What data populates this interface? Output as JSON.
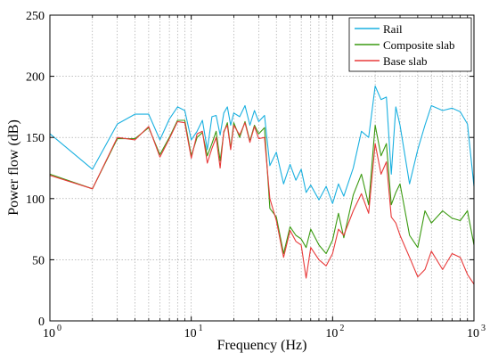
{
  "chart_data": {
    "type": "line",
    "title": "",
    "xlabel": "Frequency (Hz)",
    "ylabel": "Power flow (dB)",
    "xscale": "log",
    "xlim": [
      1,
      1000
    ],
    "ylim": [
      0,
      250
    ],
    "grid": true,
    "legend_position": "top-right",
    "x_ticks": [
      {
        "value": 1,
        "base": "10",
        "exp": "0"
      },
      {
        "value": 10,
        "base": "10",
        "exp": "1"
      },
      {
        "value": 100,
        "base": "10",
        "exp": "2"
      },
      {
        "value": 1000,
        "base": "10",
        "exp": "3"
      }
    ],
    "y_ticks": [
      0,
      50,
      100,
      150,
      200,
      250
    ],
    "x": [
      1,
      2,
      3,
      4,
      5,
      6,
      7,
      8,
      9,
      10,
      11,
      12,
      13,
      14,
      15,
      16,
      17,
      18,
      19,
      20,
      22,
      24,
      26,
      28,
      30,
      33,
      36,
      40,
      45,
      50,
      55,
      60,
      65,
      70,
      80,
      90,
      100,
      110,
      120,
      140,
      160,
      180,
      200,
      220,
      240,
      260,
      280,
      300,
      350,
      400,
      450,
      500,
      600,
      700,
      800,
      900,
      1000
    ],
    "series": [
      {
        "name": "Rail",
        "color": "#1ab0e0",
        "values": [
          153,
          124,
          161,
          169,
          169,
          148,
          165,
          175,
          172,
          148,
          155,
          164,
          140,
          167,
          168,
          152,
          170,
          175,
          160,
          170,
          167,
          176,
          160,
          172,
          163,
          168,
          127,
          138,
          112,
          128,
          115,
          124,
          105,
          111,
          99,
          110,
          96,
          112,
          102,
          125,
          155,
          150,
          192,
          181,
          183,
          120,
          175,
          160,
          112,
          140,
          160,
          176,
          172,
          174,
          171,
          161,
          110
        ]
      },
      {
        "name": "Composite slab",
        "color": "#3a9a10",
        "values": [
          120,
          108,
          149,
          149,
          158,
          136,
          150,
          164,
          164,
          135,
          150,
          154,
          135,
          145,
          155,
          131,
          154,
          162,
          141,
          162,
          150,
          163,
          147,
          160,
          153,
          158,
          92,
          85,
          55,
          77,
          70,
          67,
          60,
          75,
          62,
          55,
          66,
          88,
          68,
          103,
          120,
          95,
          160,
          135,
          145,
          95,
          105,
          112,
          70,
          60,
          90,
          80,
          90,
          84,
          82,
          90,
          62
        ]
      },
      {
        "name": "Base slab",
        "color": "#e83a3a",
        "values": [
          119,
          108,
          150,
          148,
          159,
          134,
          149,
          163,
          162,
          133,
          153,
          155,
          129,
          141,
          150,
          125,
          155,
          160,
          140,
          160,
          152,
          162,
          146,
          159,
          149,
          150,
          100,
          82,
          52,
          74,
          65,
          62,
          35,
          60,
          50,
          45,
          55,
          75,
          70,
          90,
          104,
          88,
          145,
          120,
          130,
          85,
          80,
          70,
          52,
          36,
          42,
          57,
          42,
          55,
          52,
          38,
          30
        ]
      }
    ]
  }
}
